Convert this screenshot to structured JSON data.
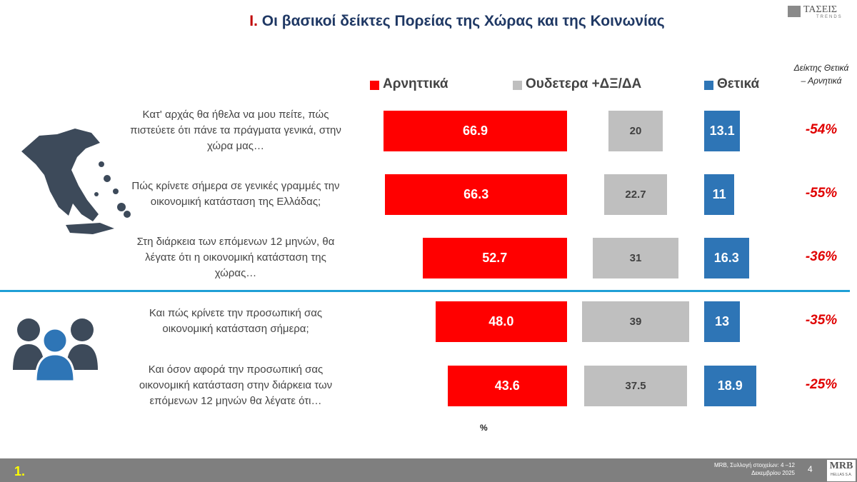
{
  "logo": {
    "name": "ΤΑΣΕΙΣ",
    "tagline": "TRENDS"
  },
  "chart_data": {
    "type": "bar",
    "title_number": "Ι.",
    "title": "Οι βασικοί δείκτες Πορείας της Χώρας και της Κοινωνίας",
    "categories": [
      "Κατ' αρχάς θα ήθελα να μου πείτε, πώς πιστεύετε ότι πάνε τα πράγματα γενικά, στην χώρα μας…",
      "Πώς κρίνετε σήμερα σε γενικές γραμμές την οικονομική κατάσταση της Ελλάδας;",
      "Στη διάρκεια των επόμενων 12 μηνών, θα λέγατε ότι η οικονομική κατάσταση της χώρας…",
      "Και πώς κρίνετε την προσωπική σας οικονομική κατάσταση σήμερα;",
      "Και όσον αφορά την προσωπική σας οικονομική κατάσταση στην διάρκεια των επόμενων 12 μηνών θα λέγατε ότι…"
    ],
    "series": [
      {
        "name": "Αρνηττικά",
        "color": "#ff0000",
        "values": [
          66.9,
          66.3,
          52.7,
          48.0,
          43.6
        ],
        "value_labels": [
          "66.9",
          "66.3",
          "52.7",
          "48.0",
          "43.6"
        ]
      },
      {
        "name": "Ουδετερα +ΔΞ/ΔΑ",
        "color": "#bfbfbf",
        "values": [
          20,
          22.7,
          31,
          39,
          37.5
        ]
      },
      {
        "name": "Θετικά",
        "color": "#2e75b6",
        "values": [
          13.1,
          11,
          16.3,
          13,
          18.9
        ]
      }
    ],
    "index": {
      "title": "Δείκτης Θετικά – Αρνητικά",
      "color": "#e00000",
      "values": [
        -54,
        -55,
        -36,
        -35,
        -25
      ],
      "value_labels": [
        "-54%",
        "-55%",
        "-36%",
        "-35%",
        "-25%"
      ]
    },
    "unit": "%"
  },
  "footer": {
    "section": "1.",
    "source": "MRB, Συλλογή στοιχείων: 4 –12 Δεκεμβρίου 2025",
    "page": "4",
    "brand": "MRB",
    "brand_sub": "HELLAS S.A."
  }
}
